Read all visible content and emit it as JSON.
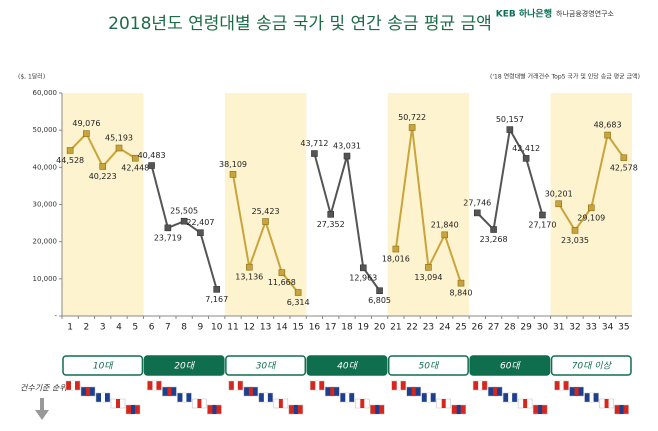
{
  "chart_data": {
    "type": "line",
    "title": "2018년도 연령대별 송금 국가 및 연간 송금 평균 금액",
    "logo": "KEB 하나은행",
    "logo_sub": "하나금융경영연구소",
    "unit_label": "($, 1달러)",
    "note": "('18 연령대별 거래건수 Top5 국가 및 인당 송금 평균 금액)",
    "side_label": "건수기준 순위",
    "categories": [
      "1",
      "2",
      "3",
      "4",
      "5",
      "6",
      "7",
      "8",
      "9",
      "10",
      "11",
      "12",
      "13",
      "14",
      "15",
      "16",
      "17",
      "18",
      "19",
      "20",
      "21",
      "22",
      "23",
      "24",
      "25",
      "26",
      "27",
      "28",
      "29",
      "30",
      "31",
      "32",
      "33",
      "34",
      "35"
    ],
    "ylim": [
      0,
      60000
    ],
    "yticks": [
      {
        "value": 0,
        "label": "-"
      },
      {
        "value": 10000,
        "label": "10,000"
      },
      {
        "value": 20000,
        "label": "20,000"
      },
      {
        "value": 30000,
        "label": "30,000"
      },
      {
        "value": 40000,
        "label": "40,000"
      },
      {
        "value": 50000,
        "label": "50,000"
      },
      {
        "value": 60000,
        "label": "60,000"
      }
    ],
    "series": [
      {
        "name": "10대",
        "color": "#c9a43a",
        "shaded": true,
        "values": [
          44528,
          49076,
          40223,
          45193,
          42448,
          null,
          null,
          null,
          null,
          null,
          null,
          null,
          null,
          null,
          null,
          null,
          null,
          null,
          null,
          null,
          null,
          null,
          null,
          null,
          null,
          null,
          null,
          null,
          null,
          null,
          null,
          null,
          null,
          null,
          null
        ],
        "value_labels": [
          "44,528",
          "49,076",
          "40,223",
          "45,193",
          "42,448",
          null,
          null,
          null,
          null,
          null,
          null,
          null,
          null,
          null,
          null,
          null,
          null,
          null,
          null,
          null,
          null,
          null,
          null,
          null,
          null,
          null,
          null,
          null,
          null,
          null,
          null,
          null,
          null,
          null,
          null
        ]
      },
      {
        "name": "20대",
        "color": "#555555",
        "shaded": false,
        "values": [
          null,
          null,
          null,
          null,
          null,
          40483,
          23719,
          25505,
          22407,
          7167,
          null,
          null,
          null,
          null,
          null,
          null,
          null,
          null,
          null,
          null,
          null,
          null,
          null,
          null,
          null,
          null,
          null,
          null,
          null,
          null,
          null,
          null,
          null,
          null,
          null
        ],
        "value_labels": [
          null,
          null,
          null,
          null,
          null,
          "40,483",
          "23,719",
          "25,505",
          "22,407",
          "7,167",
          null,
          null,
          null,
          null,
          null,
          null,
          null,
          null,
          null,
          null,
          null,
          null,
          null,
          null,
          null,
          null,
          null,
          null,
          null,
          null,
          null,
          null,
          null,
          null,
          null
        ]
      },
      {
        "name": "30대",
        "color": "#c9a43a",
        "shaded": true,
        "values": [
          null,
          null,
          null,
          null,
          null,
          null,
          null,
          null,
          null,
          null,
          38109,
          13136,
          25423,
          11668,
          6314,
          null,
          null,
          null,
          null,
          null,
          null,
          null,
          null,
          null,
          null,
          null,
          null,
          null,
          null,
          null,
          null,
          null,
          null,
          null,
          null
        ],
        "value_labels": [
          null,
          null,
          null,
          null,
          null,
          null,
          null,
          null,
          null,
          null,
          "38,109",
          "13,136",
          "25,423",
          "11,668",
          "6,314",
          null,
          null,
          null,
          null,
          null,
          null,
          null,
          null,
          null,
          null,
          null,
          null,
          null,
          null,
          null,
          null,
          null,
          null,
          null,
          null
        ]
      },
      {
        "name": "40대",
        "color": "#555555",
        "shaded": false,
        "values": [
          null,
          null,
          null,
          null,
          null,
          null,
          null,
          null,
          null,
          null,
          null,
          null,
          null,
          null,
          null,
          43712,
          27352,
          43031,
          12963,
          6805,
          null,
          null,
          null,
          null,
          null,
          null,
          null,
          null,
          null,
          null,
          null,
          null,
          null,
          null,
          null
        ],
        "value_labels": [
          null,
          null,
          null,
          null,
          null,
          null,
          null,
          null,
          null,
          null,
          null,
          null,
          null,
          null,
          null,
          "43,712",
          "27,352",
          "43,031",
          "12,963",
          "6,805",
          null,
          null,
          null,
          null,
          null,
          null,
          null,
          null,
          null,
          null,
          null,
          null,
          null,
          null,
          null
        ]
      },
      {
        "name": "50대",
        "color": "#c9a43a",
        "shaded": true,
        "values": [
          null,
          null,
          null,
          null,
          null,
          null,
          null,
          null,
          null,
          null,
          null,
          null,
          null,
          null,
          null,
          null,
          null,
          null,
          null,
          null,
          18016,
          50722,
          13094,
          21840,
          8840,
          null,
          null,
          null,
          null,
          null,
          null,
          null,
          null,
          null,
          null
        ],
        "value_labels": [
          null,
          null,
          null,
          null,
          null,
          null,
          null,
          null,
          null,
          null,
          null,
          null,
          null,
          null,
          null,
          null,
          null,
          null,
          null,
          null,
          "18,016",
          "50,722",
          "13,094",
          "21,840",
          "8,840",
          null,
          null,
          null,
          null,
          null,
          null,
          null,
          null,
          null,
          null
        ]
      },
      {
        "name": "60대",
        "color": "#555555",
        "shaded": false,
        "values": [
          null,
          null,
          null,
          null,
          null,
          null,
          null,
          null,
          null,
          null,
          null,
          null,
          null,
          null,
          null,
          null,
          null,
          null,
          null,
          null,
          null,
          null,
          null,
          null,
          null,
          27746,
          23268,
          50157,
          42412,
          27170,
          null,
          null,
          null,
          null,
          null
        ],
        "value_labels": [
          null,
          null,
          null,
          null,
          null,
          null,
          null,
          null,
          null,
          null,
          null,
          null,
          null,
          null,
          null,
          null,
          null,
          null,
          null,
          null,
          null,
          null,
          null,
          null,
          null,
          "27,746",
          "23,268",
          "50,157",
          "42,412",
          "27,170",
          null,
          null,
          null,
          null,
          null
        ]
      },
      {
        "name": "70대 이상",
        "color": "#c9a43a",
        "shaded": true,
        "values": [
          null,
          null,
          null,
          null,
          null,
          null,
          null,
          null,
          null,
          null,
          null,
          null,
          null,
          null,
          null,
          null,
          null,
          null,
          null,
          null,
          null,
          null,
          null,
          null,
          null,
          null,
          null,
          null,
          null,
          null,
          30201,
          23035,
          29109,
          48683,
          42578
        ],
        "value_labels": [
          null,
          null,
          null,
          null,
          null,
          null,
          null,
          null,
          null,
          null,
          null,
          null,
          null,
          null,
          null,
          null,
          null,
          null,
          null,
          null,
          null,
          null,
          null,
          null,
          null,
          null,
          null,
          null,
          null,
          null,
          "30,201",
          "23,035",
          "29,109",
          "48,683",
          "42,578"
        ]
      }
    ]
  }
}
